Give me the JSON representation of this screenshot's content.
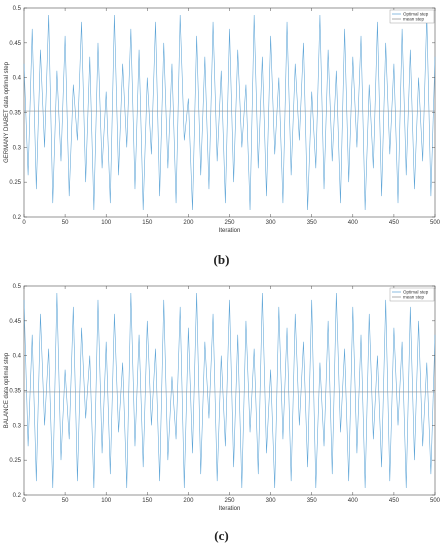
{
  "chart_data": [
    {
      "type": "line",
      "panel": "(b)",
      "xlabel": "Iteration",
      "ylabel": "GERMANY DIABET data optimal step",
      "xlim": [
        0,
        500
      ],
      "ylim": [
        0.2,
        0.5
      ],
      "xticks": [
        "0",
        "50",
        "100",
        "150",
        "200",
        "250",
        "300",
        "350",
        "400",
        "450",
        "500"
      ],
      "yticks": [
        "0.2",
        "0.25",
        "0.3",
        "0.35",
        "0.4",
        "0.45",
        "0.5"
      ],
      "grid": false,
      "legend_position": "top-right",
      "series": [
        {
          "name": "Optimal step",
          "color": "#5ba3d6",
          "sampling": "every 5 iterations (approximated random fluctuation)",
          "x": [
            0,
            5,
            10,
            15,
            20,
            25,
            30,
            35,
            40,
            45,
            50,
            55,
            60,
            65,
            70,
            75,
            80,
            85,
            90,
            95,
            100,
            105,
            110,
            115,
            120,
            125,
            130,
            135,
            140,
            145,
            150,
            155,
            160,
            165,
            170,
            175,
            180,
            185,
            190,
            195,
            200,
            205,
            210,
            215,
            220,
            225,
            230,
            235,
            240,
            245,
            250,
            255,
            260,
            265,
            270,
            275,
            280,
            285,
            290,
            295,
            300,
            305,
            310,
            315,
            320,
            325,
            330,
            335,
            340,
            345,
            350,
            355,
            360,
            365,
            370,
            375,
            380,
            385,
            390,
            395,
            400,
            405,
            410,
            415,
            420,
            425,
            430,
            435,
            440,
            445,
            450,
            455,
            460,
            465,
            470,
            475,
            480,
            485,
            490,
            495,
            500
          ],
          "values": [
            0.42,
            0.26,
            0.47,
            0.24,
            0.44,
            0.3,
            0.49,
            0.22,
            0.41,
            0.28,
            0.46,
            0.23,
            0.39,
            0.31,
            0.48,
            0.25,
            0.43,
            0.21,
            0.45,
            0.27,
            0.38,
            0.22,
            0.49,
            0.26,
            0.42,
            0.3,
            0.47,
            0.24,
            0.44,
            0.21,
            0.4,
            0.29,
            0.48,
            0.23,
            0.45,
            0.27,
            0.42,
            0.22,
            0.49,
            0.31,
            0.37,
            0.21,
            0.46,
            0.26,
            0.43,
            0.24,
            0.48,
            0.28,
            0.41,
            0.22,
            0.47,
            0.25,
            0.44,
            0.3,
            0.39,
            0.21,
            0.49,
            0.27,
            0.43,
            0.23,
            0.46,
            0.29,
            0.4,
            0.22,
            0.48,
            0.26,
            0.42,
            0.31,
            0.45,
            0.21,
            0.38,
            0.27,
            0.49,
            0.24,
            0.44,
            0.28,
            0.41,
            0.22,
            0.47,
            0.25,
            0.43,
            0.3,
            0.46,
            0.21,
            0.39,
            0.27,
            0.48,
            0.23,
            0.45,
            0.29,
            0.42,
            0.22,
            0.47,
            0.26,
            0.44,
            0.24,
            0.4,
            0.28,
            0.49,
            0.23,
            0.43
          ]
        },
        {
          "name": "mean step",
          "color": "#8c8c8c",
          "x": [
            0,
            500
          ],
          "values": [
            0.352,
            0.352
          ]
        }
      ]
    },
    {
      "type": "line",
      "panel": "(c)",
      "xlabel": "Iteration",
      "ylabel": "BALANCE data optimal step",
      "xlim": [
        0,
        500
      ],
      "ylim": [
        0.2,
        0.5
      ],
      "xticks": [
        "0",
        "50",
        "100",
        "150",
        "200",
        "250",
        "300",
        "350",
        "400",
        "450",
        "500"
      ],
      "yticks": [
        "0.2",
        "0.25",
        "0.3",
        "0.35",
        "0.4",
        "0.45",
        "0.5"
      ],
      "grid": false,
      "legend_position": "top-right",
      "series": [
        {
          "name": "Optimal step",
          "color": "#5ba3d6",
          "sampling": "every 5 iterations (approximated random fluctuation)",
          "x": [
            0,
            5,
            10,
            15,
            20,
            25,
            30,
            35,
            40,
            45,
            50,
            55,
            60,
            65,
            70,
            75,
            80,
            85,
            90,
            95,
            100,
            105,
            110,
            115,
            120,
            125,
            130,
            135,
            140,
            145,
            150,
            155,
            160,
            165,
            170,
            175,
            180,
            185,
            190,
            195,
            200,
            205,
            210,
            215,
            220,
            225,
            230,
            235,
            240,
            245,
            250,
            255,
            260,
            265,
            270,
            275,
            280,
            285,
            290,
            295,
            300,
            305,
            310,
            315,
            320,
            325,
            330,
            335,
            340,
            345,
            350,
            355,
            360,
            365,
            370,
            375,
            380,
            385,
            390,
            395,
            400,
            405,
            410,
            415,
            420,
            425,
            430,
            435,
            440,
            445,
            450,
            455,
            460,
            465,
            470,
            475,
            480,
            485,
            490,
            495,
            500
          ],
          "values": [
            0.48,
            0.27,
            0.43,
            0.22,
            0.46,
            0.3,
            0.41,
            0.21,
            0.49,
            0.25,
            0.38,
            0.28,
            0.47,
            0.22,
            0.44,
            0.31,
            0.4,
            0.21,
            0.48,
            0.26,
            0.42,
            0.23,
            0.46,
            0.29,
            0.39,
            0.21,
            0.49,
            0.27,
            0.43,
            0.24,
            0.45,
            0.3,
            0.41,
            0.22,
            0.48,
            0.25,
            0.37,
            0.28,
            0.47,
            0.21,
            0.44,
            0.26,
            0.49,
            0.23,
            0.42,
            0.31,
            0.46,
            0.22,
            0.4,
            0.27,
            0.48,
            0.24,
            0.43,
            0.21,
            0.45,
            0.29,
            0.41,
            0.23,
            0.49,
            0.26,
            0.38,
            0.21,
            0.47,
            0.28,
            0.44,
            0.22,
            0.46,
            0.3,
            0.42,
            0.24,
            0.48,
            0.21,
            0.39,
            0.27,
            0.45,
            0.23,
            0.49,
            0.29,
            0.41,
            0.22,
            0.47,
            0.26,
            0.43,
            0.21,
            0.46,
            0.28,
            0.4,
            0.24,
            0.48,
            0.22,
            0.44,
            0.3,
            0.42,
            0.21,
            0.47,
            0.25,
            0.45,
            0.27,
            0.39,
            0.23,
            0.43
          ]
        },
        {
          "name": "mean step",
          "color": "#8c8c8c",
          "x": [
            0,
            500
          ],
          "values": [
            0.348,
            0.348
          ]
        }
      ]
    }
  ],
  "captions": {
    "b": "(b)",
    "c": "(c)"
  }
}
